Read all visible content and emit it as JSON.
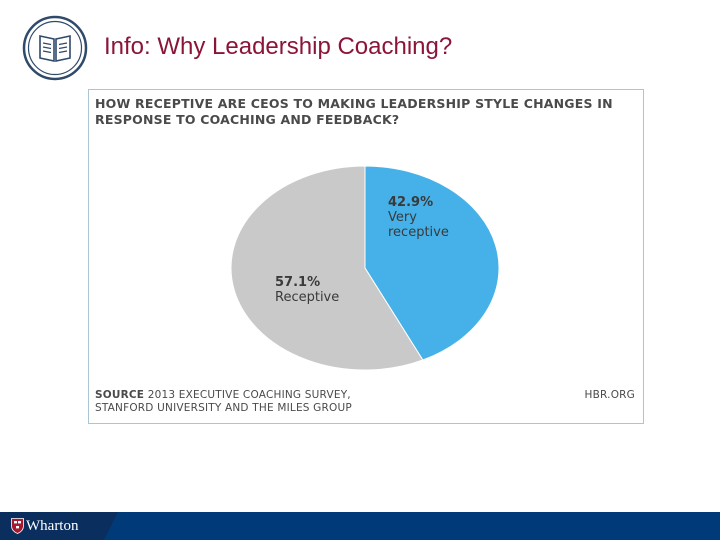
{
  "slide": {
    "title": "Info: Why Leadership Coaching?",
    "icon": "book-icon"
  },
  "chart_data": {
    "type": "pie",
    "title": "HOW RECEPTIVE ARE CEOS TO MAKING LEADERSHIP STYLE CHANGES IN RESPONSE TO COACHING AND FEEDBACK?",
    "slices": [
      {
        "label_line1": "Very",
        "label_line2": "receptive",
        "value": 42.9,
        "value_text": "42.9%",
        "color": "#45b1e8"
      },
      {
        "label_line1": "Receptive",
        "label_line2": "",
        "value": 57.1,
        "value_text": "57.1%",
        "color": "#c9c9c9"
      }
    ]
  },
  "source": {
    "label": "SOURCE",
    "line1": "2013 EXECUTIVE COACHING SURVEY,",
    "line2": "STANFORD UNIVERSITY AND THE MILES GROUP",
    "site": "HBR.ORG"
  },
  "footer": {
    "brand": "Wharton",
    "icon": "shield-icon",
    "color": "#003a78"
  }
}
